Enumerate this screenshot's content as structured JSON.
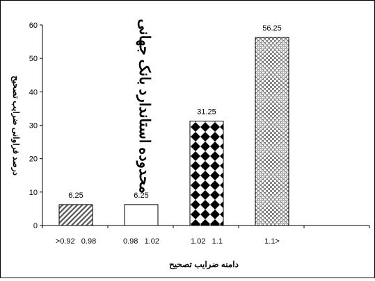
{
  "chart_data": {
    "type": "bar",
    "categories": [
      ">0.92   0.98",
      "0.98   1.02",
      "1.02   1.1",
      "1.1>"
    ],
    "values": [
      6.25,
      6.25,
      31.25,
      56.25
    ],
    "data_labels": [
      "6.25",
      "6.25",
      "31.25",
      "56.25"
    ],
    "bar_patterns": [
      "diagonal-hatch",
      "white",
      "checker",
      "weave"
    ],
    "title": "",
    "xlabel": "دامنه ضرایب تصحیح",
    "ylabel": "درصد فراوانی ضرایب تصحیح",
    "annotation": "محدوده استاندارد بانک جهانی",
    "ylim": [
      0,
      60
    ],
    "yticks": [
      "0",
      "10",
      "20",
      "30",
      "40",
      "50",
      "60"
    ],
    "grid": false,
    "legend": "none"
  }
}
